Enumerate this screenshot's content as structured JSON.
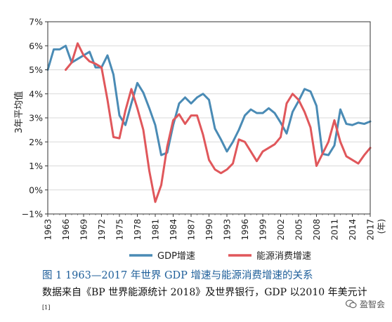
{
  "chart_data": {
    "type": "line",
    "ylabel": "3年平均值",
    "xlabel": "",
    "x_unit": "(年)",
    "ylim": [
      -1,
      7
    ],
    "xlim": [
      1963,
      2017
    ],
    "yticks": [
      "−1%",
      "0%",
      "1%",
      "2%",
      "3%",
      "4%",
      "5%",
      "6%",
      "7%"
    ],
    "xticks": [
      "1963",
      "1966",
      "1969",
      "1972",
      "1975",
      "1978",
      "1981",
      "1984",
      "1987",
      "1990",
      "1993",
      "1996",
      "1999",
      "2002",
      "2005",
      "2008",
      "2011",
      "2014",
      "2017"
    ],
    "legend_position": "bottom",
    "series": [
      {
        "name": "GDP增速",
        "color": "#4a8bb5",
        "x": [
          1963,
          1964,
          1965,
          1966,
          1967,
          1968,
          1969,
          1970,
          1971,
          1972,
          1973,
          1974,
          1975,
          1976,
          1977,
          1978,
          1979,
          1980,
          1981,
          1982,
          1983,
          1984,
          1985,
          1986,
          1987,
          1988,
          1989,
          1990,
          1991,
          1992,
          1993,
          1994,
          1995,
          1996,
          1997,
          1998,
          1999,
          2000,
          2001,
          2002,
          2003,
          2004,
          2005,
          2006,
          2007,
          2008,
          2009,
          2010,
          2011,
          2012,
          2013,
          2014,
          2015,
          2016,
          2017
        ],
        "values": [
          5.0,
          5.85,
          5.85,
          6.0,
          5.3,
          5.45,
          5.6,
          5.75,
          5.1,
          5.1,
          5.6,
          4.8,
          3.1,
          2.7,
          3.6,
          4.45,
          4.05,
          3.4,
          2.7,
          1.45,
          1.55,
          2.7,
          3.6,
          3.85,
          3.6,
          3.85,
          4.0,
          3.75,
          2.55,
          2.1,
          1.6,
          2.0,
          2.5,
          3.1,
          3.35,
          3.2,
          3.2,
          3.4,
          3.2,
          2.8,
          2.35,
          3.25,
          3.7,
          4.2,
          4.1,
          3.5,
          1.5,
          1.45,
          1.85,
          3.35,
          2.75,
          2.7,
          2.8,
          2.75,
          2.85
        ]
      },
      {
        "name": "能源消费增速",
        "color": "#e0575b",
        "x": [
          1966,
          1967,
          1968,
          1969,
          1970,
          1971,
          1972,
          1973,
          1974,
          1975,
          1976,
          1977,
          1978,
          1979,
          1980,
          1981,
          1982,
          1983,
          1984,
          1985,
          1986,
          1987,
          1988,
          1989,
          1990,
          1991,
          1992,
          1993,
          1994,
          1995,
          1996,
          1997,
          1998,
          1999,
          2000,
          2001,
          2002,
          2003,
          2004,
          2005,
          2006,
          2007,
          2008,
          2009,
          2010,
          2011,
          2012,
          2013,
          2014,
          2015,
          2016,
          2017
        ],
        "values": [
          5.0,
          5.3,
          6.1,
          5.6,
          5.35,
          5.25,
          5.1,
          3.75,
          2.2,
          2.15,
          3.3,
          4.2,
          3.4,
          2.5,
          0.8,
          -0.5,
          0.2,
          1.8,
          2.9,
          3.15,
          2.75,
          3.1,
          3.1,
          2.3,
          1.25,
          0.85,
          0.7,
          0.85,
          1.1,
          2.1,
          2.0,
          1.6,
          1.2,
          1.6,
          1.75,
          1.9,
          2.2,
          3.6,
          4.0,
          3.75,
          3.25,
          2.6,
          1.0,
          1.5,
          2.0,
          2.9,
          2.0,
          1.4,
          1.25,
          1.1,
          1.45,
          1.75
        ]
      }
    ]
  },
  "caption": "图 1    1963—2017 年世界 GDP 增速与能源消费增速的关系",
  "note": "数据来自《BP 世界能源统计 2018》及世界银行，GDP 以2010 年美元计",
  "note_ref": "[1]",
  "watermark": "盈智会"
}
